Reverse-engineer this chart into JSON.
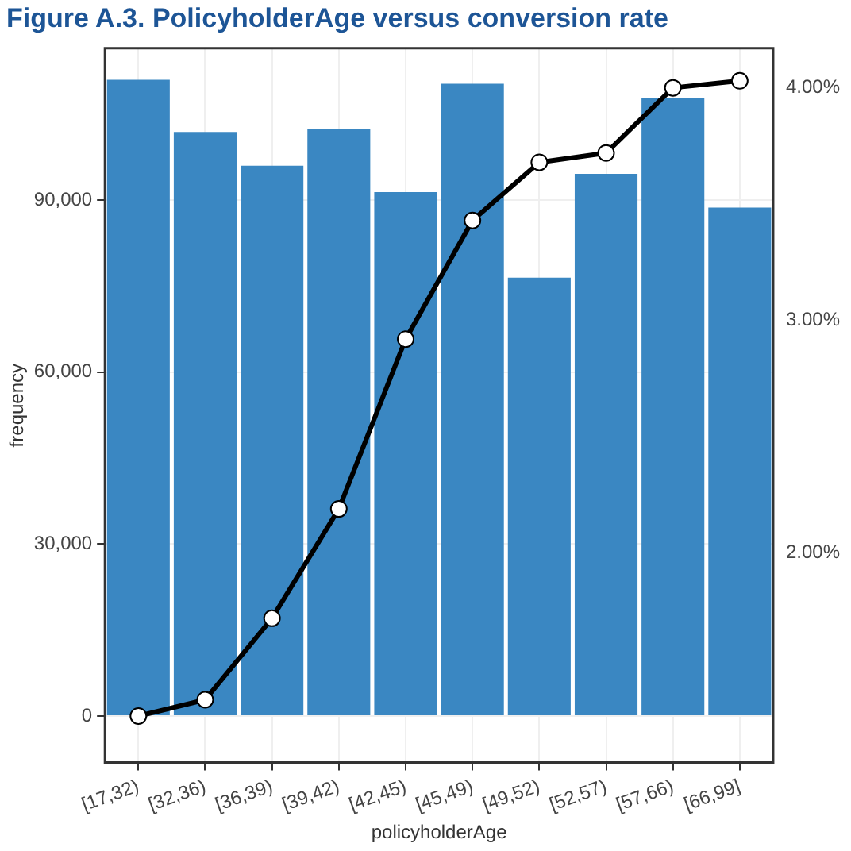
{
  "chart_data": {
    "type": "bar",
    "title": "Figure A.3. PolicyholderAge versus conversion rate",
    "xlabel": "policyholderAge",
    "ylabel": "frequency",
    "categories": [
      "[17,32)",
      "[32,36)",
      "[36,39)",
      "[39,42)",
      "[42,45)",
      "[45,49)",
      "[49,52)",
      "[52,57)",
      "[57,66)",
      "[66,99]"
    ],
    "series": [
      {
        "color": "#3a87c2",
        "values": [
          111000,
          101900,
          96000,
          102400,
          91400,
          110300,
          76500,
          94600,
          107900,
          88700
        ]
      },
      {
        "type": "line",
        "axis": "y2",
        "color": "#000000",
        "values": [
          1.3,
          1.37,
          1.72,
          2.19,
          2.92,
          3.43,
          3.68,
          3.72,
          4.0,
          4.03
        ]
      }
    ],
    "ylim": [
      -8100,
      116500
    ],
    "yticks": [
      {
        "value": 0,
        "label": "0"
      },
      {
        "value": 30000,
        "label": "30,000"
      },
      {
        "value": 60000,
        "label": "60,000"
      },
      {
        "value": 90000,
        "label": "90,000"
      }
    ],
    "y2lim": [
      1.1,
      4.17
    ],
    "y2ticks": [
      {
        "value": 2,
        "label": "2.00%"
      },
      {
        "value": 3,
        "label": "3.00%"
      },
      {
        "value": 4,
        "label": "4.00%"
      }
    ],
    "grid": true,
    "legend": false,
    "marker": "circle",
    "line_style": "solid"
  }
}
